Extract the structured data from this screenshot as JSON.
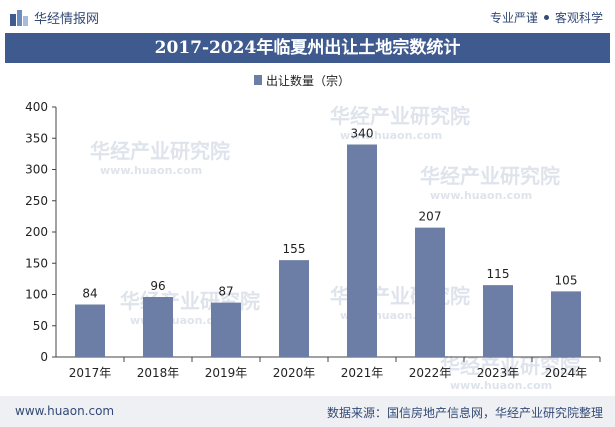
{
  "header": {
    "brand_name": "华经情报网",
    "slogan_left": "专业严谨",
    "slogan_right": "客观科学"
  },
  "footer": {
    "website": "www.huaon.com",
    "source": "数据来源：国信房地产信息网，华经产业研究院整理"
  },
  "watermark": {
    "text_cn": "华经产业研究院",
    "text_url": "www.huaon.com"
  },
  "colors": {
    "bar": "#6d7ea6",
    "title_bg": "#3f5a8f",
    "text": "#334a75"
  },
  "chart_data": {
    "type": "bar",
    "title": "2017-2024年临夏州出让土地宗数统计",
    "categories": [
      "2017年",
      "2018年",
      "2019年",
      "2020年",
      "2021年",
      "2022年",
      "2023年",
      "2024年"
    ],
    "series": [
      {
        "name": "出让数量（宗）",
        "values": [
          84,
          96,
          87,
          155,
          340,
          207,
          115,
          105
        ]
      }
    ],
    "ylim": [
      0,
      400
    ],
    "yticks": [
      0,
      50,
      100,
      150,
      200,
      250,
      300,
      350,
      400
    ],
    "xlabel": "",
    "ylabel": "",
    "legend": "top-center",
    "grid": false
  }
}
